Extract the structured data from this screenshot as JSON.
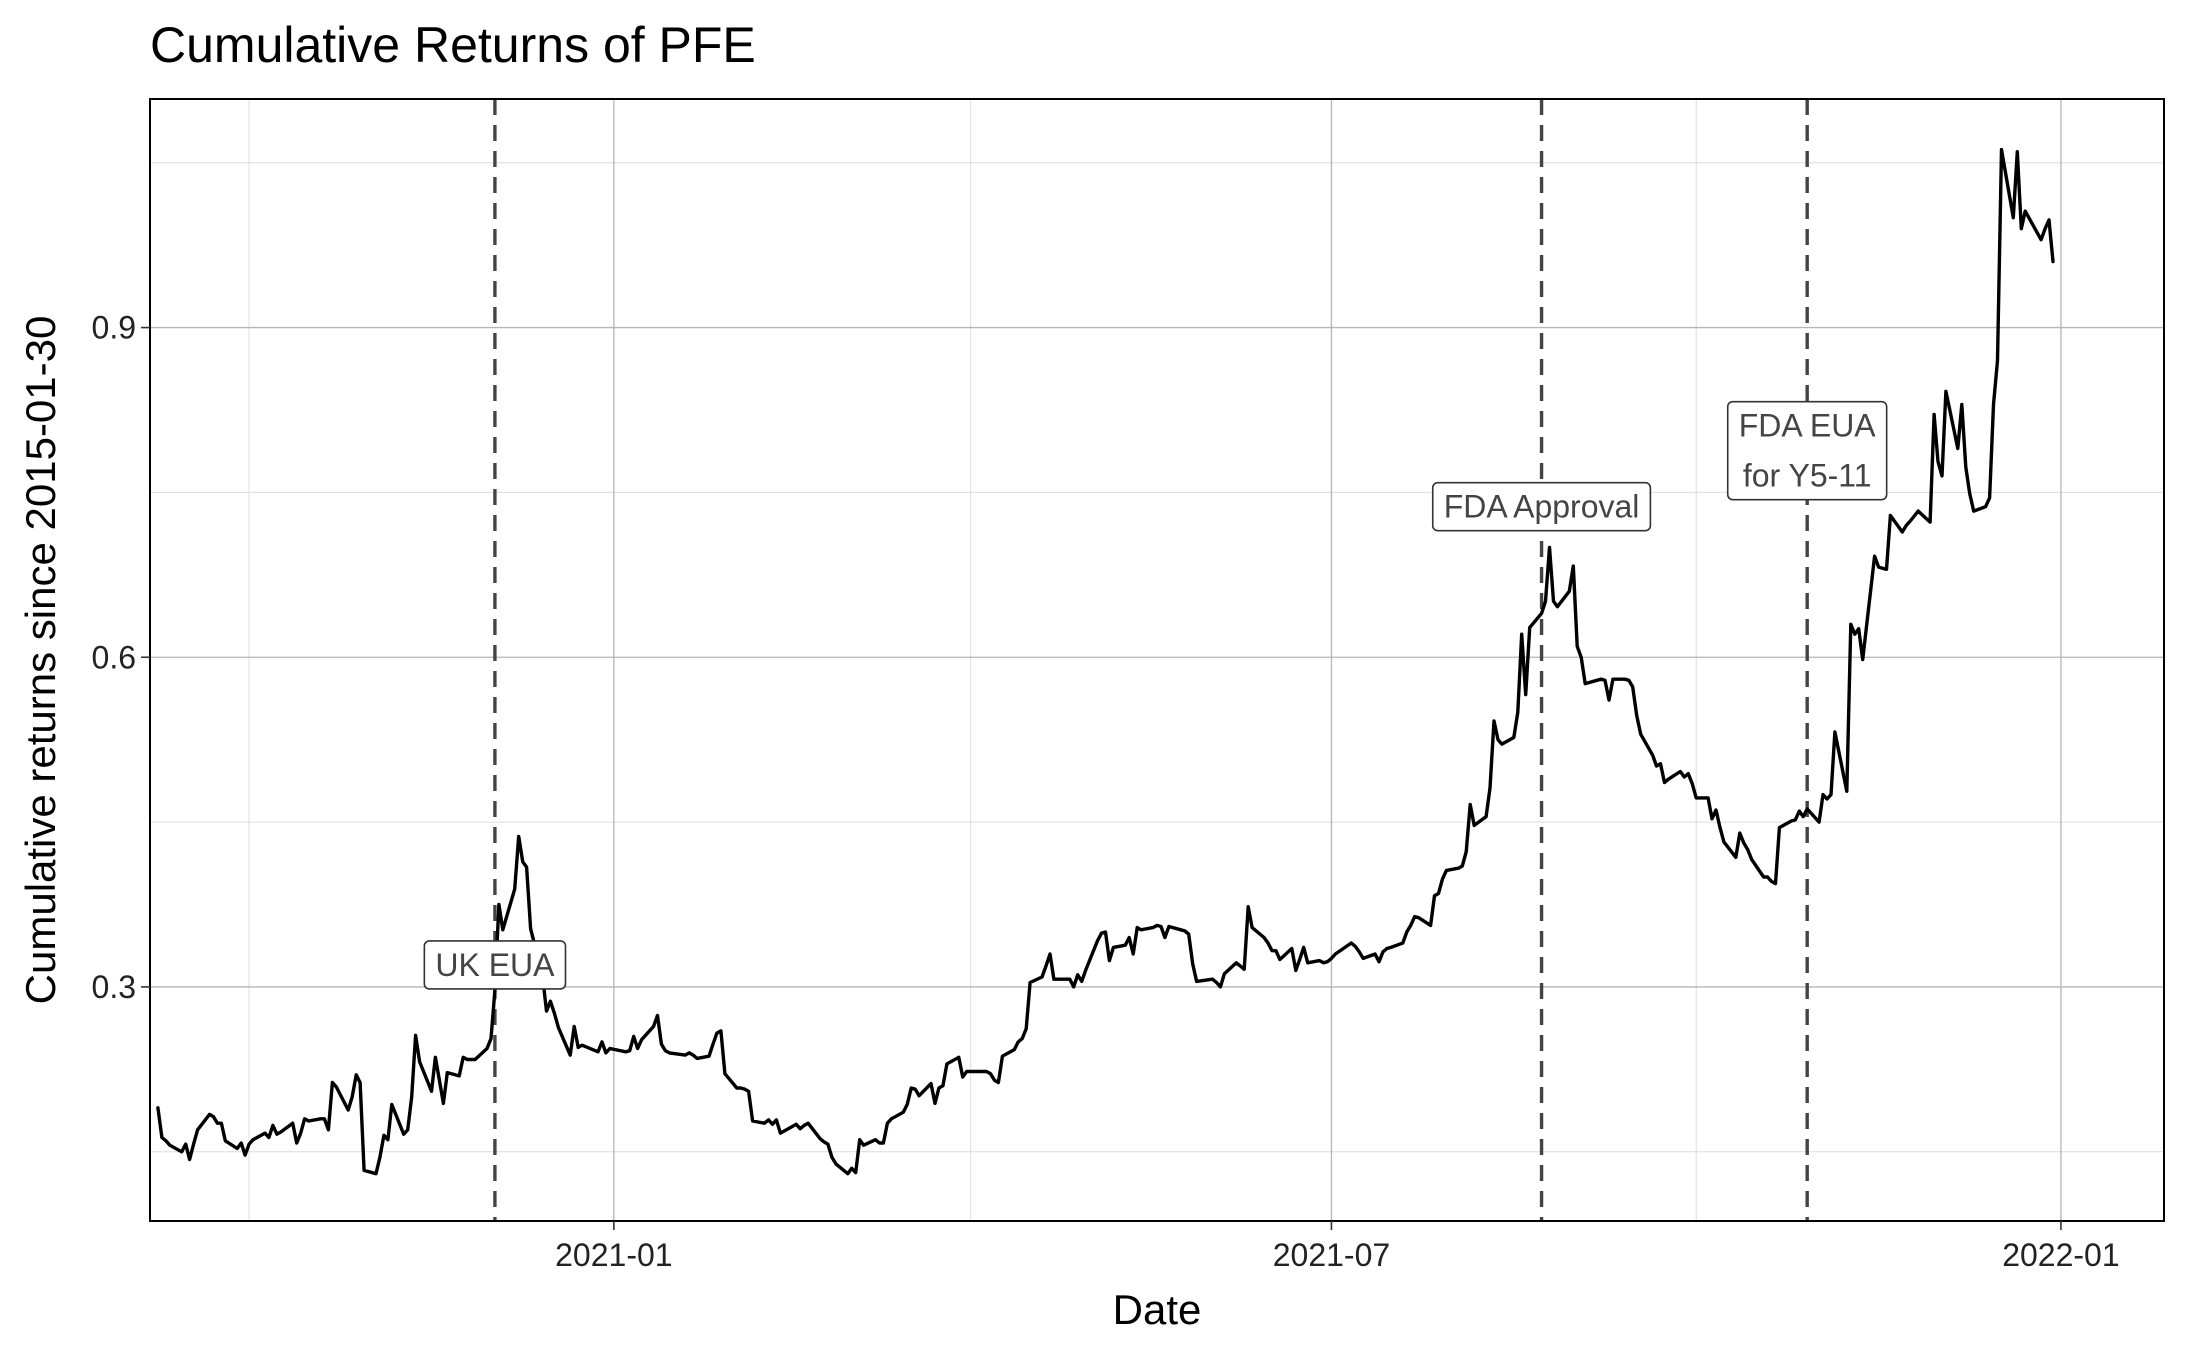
{
  "chart_data": {
    "type": "line",
    "title": "Cumulative Returns of PFE",
    "xlabel": "Date",
    "ylabel": "Cumulative returns since 2015-01-30",
    "xlim": [
      "2020-09-06",
      "2022-01-27"
    ],
    "ylim": [
      0.087,
      1.108
    ],
    "x_ticks": [
      "2021-01-01",
      "2021-07-01",
      "2022-01-01"
    ],
    "x_tick_labels": [
      "2021-01",
      "2021-07",
      "2022-01"
    ],
    "x_minor_ticks": [
      "2020-10-01",
      "2021-04-01",
      "2021-10-01"
    ],
    "y_ticks": [
      0.3,
      0.6,
      0.9
    ],
    "y_tick_labels": [
      "0.3",
      "0.6",
      "0.9"
    ],
    "y_minor_ticks": [
      0.15,
      0.45,
      0.75,
      1.05
    ],
    "grid": true,
    "legend": "none",
    "series": [
      {
        "x": [
          "2020-09-08",
          "2020-09-09",
          "2020-09-10",
          "2020-09-11",
          "2020-09-14",
          "2020-09-15",
          "2020-09-16",
          "2020-09-17",
          "2020-09-18",
          "2020-09-21",
          "2020-09-22",
          "2020-09-23",
          "2020-09-24",
          "2020-09-25",
          "2020-09-28",
          "2020-09-29",
          "2020-09-30",
          "2020-10-01",
          "2020-10-02",
          "2020-10-05",
          "2020-10-06",
          "2020-10-07",
          "2020-10-08",
          "2020-10-09",
          "2020-10-12",
          "2020-10-13",
          "2020-10-14",
          "2020-10-15",
          "2020-10-16",
          "2020-10-19",
          "2020-10-20",
          "2020-10-21",
          "2020-10-22",
          "2020-10-23",
          "2020-10-26",
          "2020-10-27",
          "2020-10-28",
          "2020-10-29",
          "2020-10-30",
          "2020-11-02",
          "2020-11-03",
          "2020-11-04",
          "2020-11-05",
          "2020-11-06",
          "2020-11-09",
          "2020-11-10",
          "2020-11-11",
          "2020-11-12",
          "2020-11-13",
          "2020-11-16",
          "2020-11-17",
          "2020-11-18",
          "2020-11-19",
          "2020-11-20",
          "2020-11-23",
          "2020-11-24",
          "2020-11-25",
          "2020-11-27",
          "2020-11-30",
          "2020-12-01",
          "2020-12-02",
          "2020-12-03",
          "2020-12-04",
          "2020-12-07",
          "2020-12-08",
          "2020-12-09",
          "2020-12-10",
          "2020-12-11",
          "2020-12-14",
          "2020-12-15",
          "2020-12-16",
          "2020-12-17",
          "2020-12-18",
          "2020-12-21",
          "2020-12-22",
          "2020-12-23",
          "2020-12-24",
          "2020-12-28",
          "2020-12-29",
          "2020-12-30",
          "2020-12-31",
          "2021-01-04",
          "2021-01-05",
          "2021-01-06",
          "2021-01-07",
          "2021-01-08",
          "2021-01-11",
          "2021-01-12",
          "2021-01-13",
          "2021-01-14",
          "2021-01-15",
          "2021-01-19",
          "2021-01-20",
          "2021-01-21",
          "2021-01-22",
          "2021-01-25",
          "2021-01-26",
          "2021-01-27",
          "2021-01-28",
          "2021-01-29",
          "2021-02-01",
          "2021-02-02",
          "2021-02-03",
          "2021-02-04",
          "2021-02-05",
          "2021-02-08",
          "2021-02-09",
          "2021-02-10",
          "2021-02-11",
          "2021-02-12",
          "2021-02-16",
          "2021-02-17",
          "2021-02-18",
          "2021-02-19",
          "2021-02-22",
          "2021-02-23",
          "2021-02-24",
          "2021-02-25",
          "2021-02-26",
          "2021-03-01",
          "2021-03-02",
          "2021-03-03",
          "2021-03-04",
          "2021-03-05",
          "2021-03-08",
          "2021-03-09",
          "2021-03-10",
          "2021-03-11",
          "2021-03-12",
          "2021-03-15",
          "2021-03-16",
          "2021-03-17",
          "2021-03-18",
          "2021-03-19",
          "2021-03-22",
          "2021-03-23",
          "2021-03-24",
          "2021-03-25",
          "2021-03-26",
          "2021-03-29",
          "2021-03-30",
          "2021-03-31",
          "2021-04-01",
          "2021-04-05",
          "2021-04-06",
          "2021-04-07",
          "2021-04-08",
          "2021-04-09",
          "2021-04-12",
          "2021-04-13",
          "2021-04-14",
          "2021-04-15",
          "2021-04-16",
          "2021-04-19",
          "2021-04-20",
          "2021-04-21",
          "2021-04-22",
          "2021-04-23",
          "2021-04-26",
          "2021-04-27",
          "2021-04-28",
          "2021-04-29",
          "2021-04-30",
          "2021-05-03",
          "2021-05-04",
          "2021-05-05",
          "2021-05-06",
          "2021-05-07",
          "2021-05-10",
          "2021-05-11",
          "2021-05-12",
          "2021-05-13",
          "2021-05-14",
          "2021-05-17",
          "2021-05-18",
          "2021-05-19",
          "2021-05-20",
          "2021-05-21",
          "2021-05-24",
          "2021-05-25",
          "2021-05-26",
          "2021-05-27",
          "2021-05-28",
          "2021-06-01",
          "2021-06-02",
          "2021-06-03",
          "2021-06-04",
          "2021-06-07",
          "2021-06-08",
          "2021-06-09",
          "2021-06-10",
          "2021-06-11",
          "2021-06-14",
          "2021-06-15",
          "2021-06-16",
          "2021-06-17",
          "2021-06-18",
          "2021-06-21",
          "2021-06-22",
          "2021-06-23",
          "2021-06-24",
          "2021-06-25",
          "2021-06-28",
          "2021-06-29",
          "2021-06-30",
          "2021-07-01",
          "2021-07-02",
          "2021-07-06",
          "2021-07-07",
          "2021-07-08",
          "2021-07-09",
          "2021-07-12",
          "2021-07-13",
          "2021-07-14",
          "2021-07-15",
          "2021-07-16",
          "2021-07-19",
          "2021-07-20",
          "2021-07-21",
          "2021-07-22",
          "2021-07-23",
          "2021-07-26",
          "2021-07-27",
          "2021-07-28",
          "2021-07-29",
          "2021-07-30",
          "2021-08-02",
          "2021-08-03",
          "2021-08-04",
          "2021-08-05",
          "2021-08-06",
          "2021-08-09",
          "2021-08-10",
          "2021-08-11",
          "2021-08-12",
          "2021-08-13",
          "2021-08-16",
          "2021-08-17",
          "2021-08-18",
          "2021-08-19",
          "2021-08-20",
          "2021-08-23",
          "2021-08-24",
          "2021-08-25",
          "2021-08-26",
          "2021-08-27",
          "2021-08-30",
          "2021-08-31",
          "2021-09-01",
          "2021-09-02",
          "2021-09-03",
          "2021-09-07",
          "2021-09-08",
          "2021-09-09",
          "2021-09-10",
          "2021-09-13",
          "2021-09-14",
          "2021-09-15",
          "2021-09-16",
          "2021-09-17",
          "2021-09-20",
          "2021-09-21",
          "2021-09-22",
          "2021-09-23",
          "2021-09-24",
          "2021-09-27",
          "2021-09-28",
          "2021-09-29",
          "2021-09-30",
          "2021-10-01",
          "2021-10-04",
          "2021-10-05",
          "2021-10-06",
          "2021-10-07",
          "2021-10-08",
          "2021-10-11",
          "2021-10-12",
          "2021-10-13",
          "2021-10-14",
          "2021-10-15",
          "2021-10-18",
          "2021-10-19",
          "2021-10-20",
          "2021-10-21",
          "2021-10-22",
          "2021-10-25",
          "2021-10-26",
          "2021-10-27",
          "2021-10-28",
          "2021-10-29",
          "2021-11-01",
          "2021-11-02",
          "2021-11-03",
          "2021-11-04",
          "2021-11-05",
          "2021-11-08",
          "2021-11-09",
          "2021-11-10",
          "2021-11-11",
          "2021-11-12",
          "2021-11-15",
          "2021-11-16",
          "2021-11-17",
          "2021-11-18",
          "2021-11-19",
          "2021-11-22",
          "2021-11-23",
          "2021-11-24",
          "2021-11-26",
          "2021-11-29",
          "2021-11-30",
          "2021-12-01",
          "2021-12-02",
          "2021-12-03",
          "2021-12-06",
          "2021-12-07",
          "2021-12-08",
          "2021-12-09",
          "2021-12-10",
          "2021-12-13",
          "2021-12-14",
          "2021-12-15",
          "2021-12-16",
          "2021-12-17",
          "2021-12-20",
          "2021-12-21",
          "2021-12-22",
          "2021-12-23",
          "2021-12-27",
          "2021-12-28",
          "2021-12-29",
          "2021-12-30"
        ],
        "y": [
          0.19,
          0.163,
          0.16,
          0.156,
          0.15,
          0.157,
          0.143,
          0.157,
          0.17,
          0.184,
          0.182,
          0.176,
          0.176,
          0.16,
          0.153,
          0.158,
          0.147,
          0.157,
          0.161,
          0.167,
          0.163,
          0.174,
          0.166,
          0.168,
          0.176,
          0.158,
          0.167,
          0.18,
          0.178,
          0.18,
          0.18,
          0.17,
          0.213,
          0.209,
          0.188,
          0.2,
          0.22,
          0.213,
          0.133,
          0.13,
          0.145,
          0.165,
          0.161,
          0.193,
          0.166,
          0.17,
          0.2,
          0.256,
          0.232,
          0.205,
          0.236,
          0.215,
          0.194,
          0.222,
          0.219,
          0.236,
          0.234,
          0.234,
          0.244,
          0.253,
          0.297,
          0.375,
          0.352,
          0.389,
          0.437,
          0.414,
          0.409,
          0.353,
          0.31,
          0.278,
          0.287,
          0.276,
          0.263,
          0.238,
          0.264,
          0.245,
          0.247,
          0.241,
          0.25,
          0.24,
          0.244,
          0.241,
          0.242,
          0.255,
          0.244,
          0.252,
          0.264,
          0.274,
          0.248,
          0.242,
          0.24,
          0.238,
          0.24,
          0.238,
          0.235,
          0.237,
          0.248,
          0.258,
          0.26,
          0.221,
          0.208,
          0.208,
          0.207,
          0.205,
          0.178,
          0.176,
          0.179,
          0.175,
          0.179,
          0.167,
          0.175,
          0.171,
          0.174,
          0.176,
          0.162,
          0.159,
          0.157,
          0.145,
          0.139,
          0.13,
          0.135,
          0.131,
          0.161,
          0.156,
          0.161,
          0.158,
          0.158,
          0.176,
          0.18,
          0.186,
          0.193,
          0.208,
          0.207,
          0.201,
          0.212,
          0.194,
          0.208,
          0.21,
          0.23,
          0.236,
          0.218,
          0.223,
          0.223,
          0.223,
          0.221,
          0.215,
          0.213,
          0.237,
          0.243,
          0.25,
          0.253,
          0.262,
          0.304,
          0.309,
          0.319,
          0.33,
          0.307,
          0.307,
          0.307,
          0.3,
          0.311,
          0.305,
          0.315,
          0.342,
          0.349,
          0.35,
          0.324,
          0.336,
          0.338,
          0.345,
          0.33,
          0.354,
          0.352,
          0.354,
          0.356,
          0.355,
          0.345,
          0.355,
          0.352,
          0.351,
          0.348,
          0.321,
          0.305,
          0.307,
          0.304,
          0.3,
          0.312,
          0.322,
          0.319,
          0.316,
          0.373,
          0.354,
          0.345,
          0.34,
          0.333,
          0.333,
          0.325,
          0.335,
          0.315,
          0.325,
          0.336,
          0.322,
          0.324,
          0.322,
          0.323,
          0.326,
          0.33,
          0.34,
          0.337,
          0.332,
          0.326,
          0.33,
          0.323,
          0.332,
          0.335,
          0.336,
          0.34,
          0.35,
          0.356,
          0.364,
          0.363,
          0.356,
          0.383,
          0.385,
          0.398,
          0.406,
          0.408,
          0.41,
          0.423,
          0.466,
          0.447,
          0.455,
          0.481,
          0.542,
          0.525,
          0.521,
          0.527,
          0.55,
          0.621,
          0.566,
          0.627,
          0.64,
          0.651,
          0.7,
          0.651,
          0.646,
          0.66,
          0.683,
          0.61,
          0.6,
          0.576,
          0.58,
          0.579,
          0.561,
          0.58,
          0.58,
          0.579,
          0.573,
          0.547,
          0.53,
          0.511,
          0.501,
          0.503,
          0.486,
          0.489,
          0.496,
          0.491,
          0.494,
          0.485,
          0.472,
          0.472,
          0.453,
          0.461,
          0.445,
          0.432,
          0.418,
          0.44,
          0.431,
          0.425,
          0.416,
          0.4,
          0.4,
          0.396,
          0.394,
          0.445,
          0.451,
          0.452,
          0.46,
          0.455,
          0.462,
          0.45,
          0.475,
          0.471,
          0.475,
          0.532,
          0.478,
          0.63,
          0.621,
          0.626,
          0.598,
          0.692,
          0.682,
          0.681,
          0.68,
          0.729,
          0.714,
          0.72,
          0.724,
          0.733,
          0.723,
          0.821,
          0.778,
          0.765,
          0.842,
          0.79,
          0.83,
          0.773,
          0.749,
          0.733,
          0.737,
          0.745,
          0.83,
          0.87,
          1.062,
          1.0,
          1.06,
          0.99,
          1.006,
          0.98,
          0.99,
          0.998,
          0.96
        ]
      }
    ],
    "annotations": [
      {
        "date": "2020-12-02",
        "label_lines": [
          "UK EUA"
        ],
        "label_y": 0.32
      },
      {
        "date": "2021-08-23",
        "label_lines": [
          "FDA Approval"
        ],
        "label_y": 0.737
      },
      {
        "date": "2021-10-29",
        "label_lines": [
          "FDA EUA",
          "for Y5-11"
        ],
        "label_y": 0.788
      }
    ]
  }
}
